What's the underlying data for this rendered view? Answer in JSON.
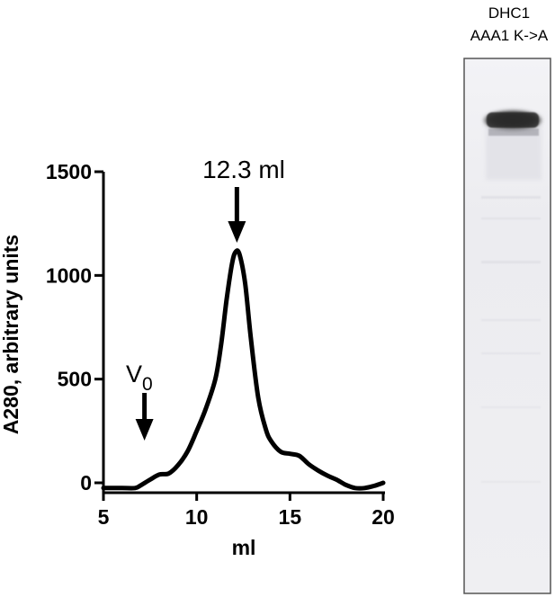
{
  "chart_data": {
    "type": "line",
    "xlabel": "ml",
    "ylabel": "A280, arbitrary units",
    "xlim": [
      5,
      20
    ],
    "ylim": [
      0,
      1500
    ],
    "xticks": [
      5,
      10,
      15,
      20
    ],
    "yticks": [
      0,
      500,
      1000,
      1500
    ],
    "grid": false,
    "x": [
      5.0,
      6.0,
      6.7,
      7.0,
      7.5,
      8.0,
      8.5,
      9.0,
      9.5,
      10.0,
      10.5,
      11.0,
      11.3,
      11.6,
      11.9,
      12.1,
      12.3,
      12.6,
      12.9,
      13.3,
      13.7,
      14.0,
      14.5,
      15.0,
      15.5,
      16.0,
      16.5,
      17.0,
      17.5,
      18.0,
      18.5,
      19.0,
      19.5,
      20.0
    ],
    "y": [
      -25,
      -25,
      -25,
      -12,
      15,
      40,
      45,
      85,
      150,
      250,
      360,
      500,
      660,
      880,
      1060,
      1115,
      1100,
      960,
      700,
      410,
      260,
      200,
      150,
      140,
      130,
      90,
      60,
      35,
      15,
      -10,
      -25,
      -25,
      -15,
      0
    ],
    "annotations": [
      {
        "text": "12.3 ml",
        "x": 12.3
      },
      {
        "text": "V",
        "subscript": "0",
        "x": 7.2
      }
    ]
  },
  "gel": {
    "label_line1": "DHC1",
    "label_line2": "AAA1 K->A"
  },
  "colors": {
    "line": "#000000",
    "gel_frame": "#555555",
    "gel_background": "#f1f1f4",
    "band": "#303030"
  }
}
